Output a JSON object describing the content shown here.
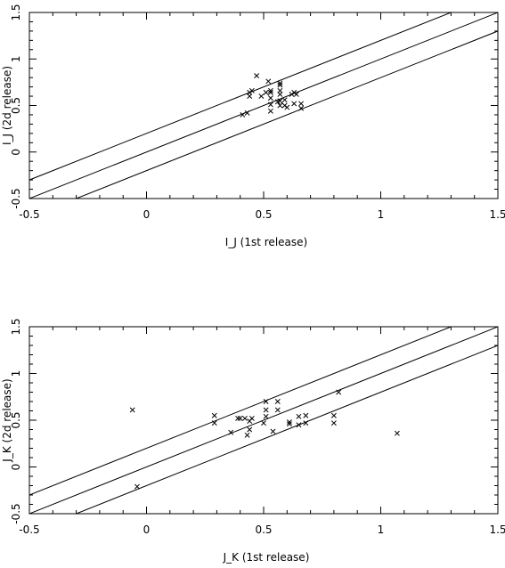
{
  "chart_data": [
    {
      "type": "scatter",
      "title": "",
      "xlabel": "I_J (1st release)",
      "ylabel": "I_J (2d release)",
      "xlim": [
        -0.5,
        1.5
      ],
      "ylim": [
        -0.5,
        1.5
      ],
      "xticks": [
        "-0.5",
        "0",
        "0.5",
        "1",
        "1.5"
      ],
      "yticks": [
        "-0.5",
        "0",
        "0.5",
        "1",
        "1.5"
      ],
      "grid": false,
      "marker": "x",
      "reference_lines": [
        {
          "intercept": 0.2,
          "slope": 1
        },
        {
          "intercept": 0.0,
          "slope": 1
        },
        {
          "intercept": -0.2,
          "slope": 1
        }
      ],
      "points": [
        [
          0.41,
          0.4
        ],
        [
          0.43,
          0.42
        ],
        [
          0.44,
          0.6
        ],
        [
          0.44,
          0.64
        ],
        [
          0.45,
          0.66
        ],
        [
          0.47,
          0.82
        ],
        [
          0.49,
          0.6
        ],
        [
          0.51,
          0.64
        ],
        [
          0.52,
          0.76
        ],
        [
          0.53,
          0.44
        ],
        [
          0.53,
          0.51
        ],
        [
          0.53,
          0.58
        ],
        [
          0.53,
          0.64
        ],
        [
          0.53,
          0.66
        ],
        [
          0.56,
          0.54
        ],
        [
          0.57,
          0.5
        ],
        [
          0.57,
          0.55
        ],
        [
          0.57,
          0.62
        ],
        [
          0.57,
          0.66
        ],
        [
          0.57,
          0.72
        ],
        [
          0.57,
          0.74
        ],
        [
          0.59,
          0.5
        ],
        [
          0.59,
          0.56
        ],
        [
          0.6,
          0.48
        ],
        [
          0.62,
          0.62
        ],
        [
          0.63,
          0.52
        ],
        [
          0.63,
          0.64
        ],
        [
          0.64,
          0.62
        ],
        [
          0.66,
          0.47
        ],
        [
          0.66,
          0.52
        ]
      ]
    },
    {
      "type": "scatter",
      "title": "",
      "xlabel": "J_K (1st release)",
      "ylabel": "J_K (2d release)",
      "xlim": [
        -0.5,
        1.5
      ],
      "ylim": [
        -0.5,
        1.5
      ],
      "xticks": [
        "-0.5",
        "0",
        "0.5",
        "1",
        "1.5"
      ],
      "yticks": [
        "-0.5",
        "0",
        "0.5",
        "1",
        "1.5"
      ],
      "grid": false,
      "marker": "x",
      "reference_lines": [
        {
          "intercept": 0.2,
          "slope": 1
        },
        {
          "intercept": 0.0,
          "slope": 1
        },
        {
          "intercept": -0.2,
          "slope": 1
        }
      ],
      "points": [
        [
          -0.06,
          0.61
        ],
        [
          -0.04,
          -0.21
        ],
        [
          0.29,
          0.47
        ],
        [
          0.29,
          0.55
        ],
        [
          0.36,
          0.37
        ],
        [
          0.39,
          0.52
        ],
        [
          0.4,
          0.52
        ],
        [
          0.42,
          0.52
        ],
        [
          0.43,
          0.34
        ],
        [
          0.44,
          0.4
        ],
        [
          0.44,
          0.49
        ],
        [
          0.45,
          0.52
        ],
        [
          0.5,
          0.47
        ],
        [
          0.51,
          0.54
        ],
        [
          0.51,
          0.61
        ],
        [
          0.51,
          0.7
        ],
        [
          0.54,
          0.38
        ],
        [
          0.56,
          0.61
        ],
        [
          0.56,
          0.7
        ],
        [
          0.61,
          0.46
        ],
        [
          0.61,
          0.48
        ],
        [
          0.65,
          0.45
        ],
        [
          0.65,
          0.54
        ],
        [
          0.68,
          0.47
        ],
        [
          0.68,
          0.55
        ],
        [
          0.8,
          0.47
        ],
        [
          0.8,
          0.55
        ],
        [
          0.82,
          0.8
        ],
        [
          1.07,
          0.36
        ]
      ]
    }
  ]
}
